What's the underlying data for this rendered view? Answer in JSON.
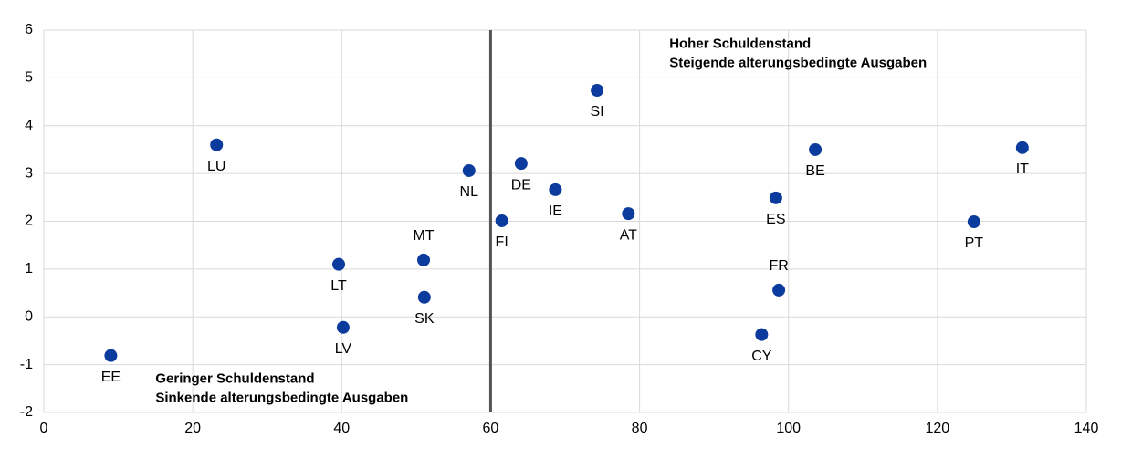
{
  "chart_data": {
    "type": "scatter",
    "series": [
      {
        "color": "#0b3b9c",
        "labels": [
          "EE",
          "LU",
          "LT",
          "LV",
          "MT",
          "SK",
          "NL",
          "FI",
          "DE",
          "IE",
          "SI",
          "AT",
          "CY",
          "ES",
          "FR",
          "BE",
          "PT",
          "IT"
        ],
        "x": [
          9,
          23.2,
          39.6,
          40.2,
          51,
          51.1,
          57.1,
          61.5,
          64.1,
          68.7,
          74.3,
          78.5,
          96.4,
          98.3,
          98.7,
          103.6,
          124.9,
          131.4
        ],
        "values": [
          -0.81,
          3.6,
          1.1,
          -0.22,
          1.19,
          0.41,
          3.06,
          2.01,
          3.21,
          2.66,
          4.74,
          2.16,
          -0.37,
          2.49,
          0.56,
          3.5,
          1.99,
          3.54
        ]
      }
    ],
    "xlim": [
      0,
      140
    ],
    "xticks": [
      0,
      20,
      40,
      60,
      80,
      100,
      120,
      140
    ],
    "ylim": [
      -2,
      6
    ],
    "yticks": [
      -2,
      -1,
      0,
      1,
      2,
      3,
      4,
      5,
      6
    ],
    "grid": true,
    "vline": 60,
    "annotations": [
      {
        "lines": [
          "Hoher Schuldenstand",
          "Steigende alterungsbedingte Ausgaben"
        ],
        "x": 84,
        "y": 5.7
      },
      {
        "lines": [
          "Geringer Schuldenstand",
          "Sinkende alterungsbedingte Ausgaben"
        ],
        "x": 15,
        "y": -1.3
      }
    ]
  }
}
